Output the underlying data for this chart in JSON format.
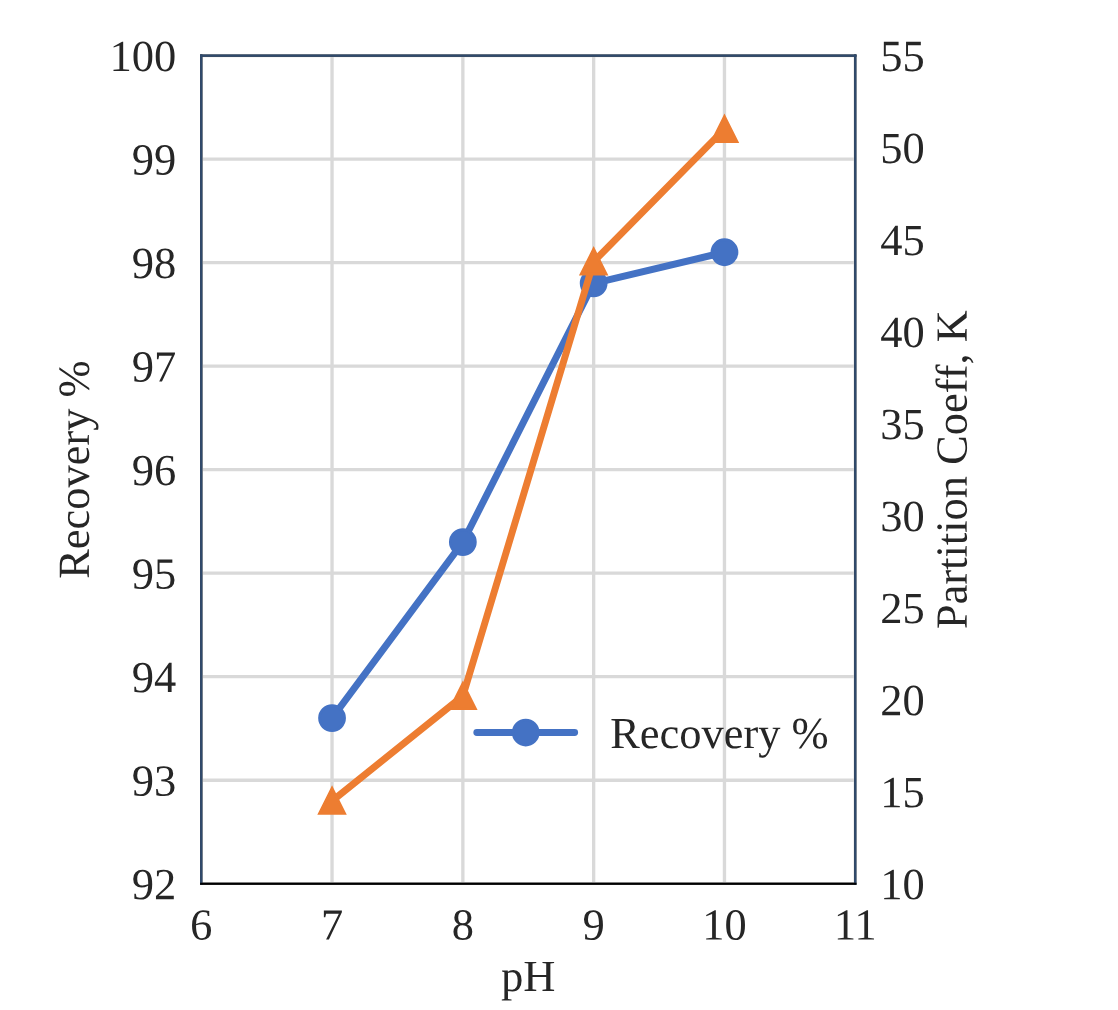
{
  "chart_data": {
    "type": "line",
    "xlabel": "pH",
    "ylabel": "Recovery %",
    "y2label": "Partition Coeff, K",
    "x": [
      7,
      8,
      9,
      10
    ],
    "series": [
      {
        "name": "Recovery %",
        "color": "#4472c4",
        "values": [
          93.6,
          95.3,
          97.8,
          98.1
        ],
        "marker": "circle"
      },
      {
        "color": "#ed7d31",
        "values": [
          14.5,
          20.2,
          43.8,
          51.0
        ],
        "axis": "y2",
        "marker": "triangle"
      }
    ],
    "xlim": [
      6,
      11
    ],
    "xticks": [
      6,
      7,
      8,
      9,
      10,
      11
    ],
    "ylim": [
      92,
      100
    ],
    "yticks": [
      92,
      93,
      94,
      95,
      96,
      97,
      98,
      99,
      100
    ],
    "y2lim": [
      10,
      55
    ],
    "y2ticks": [
      10,
      15,
      20,
      25,
      30,
      35,
      40,
      45,
      50,
      55
    ],
    "grid": true,
    "legend": "bottom right"
  }
}
